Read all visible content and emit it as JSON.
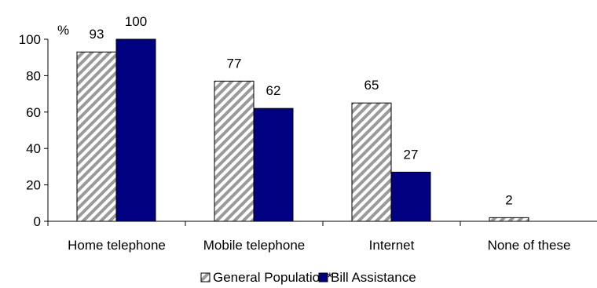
{
  "chart_data": {
    "type": "bar",
    "categories": [
      "Home telephone",
      "Mobile telephone",
      "Internet",
      "None of these"
    ],
    "series": [
      {
        "name": "General Population*",
        "values": [
          93,
          77,
          65,
          2
        ],
        "pattern": "diagonal-hatch",
        "color": "#888888"
      },
      {
        "name": "Bill Assistance",
        "values": [
          100,
          62,
          27,
          null
        ],
        "color": "#000080"
      }
    ],
    "data_labels": [
      {
        "category": "Home telephone",
        "general": "93",
        "bill": "100"
      },
      {
        "category": "Mobile telephone",
        "general": "77",
        "bill": "62"
      },
      {
        "category": "Internet",
        "general": "65",
        "bill": "27"
      },
      {
        "category": "None of these",
        "general": "2",
        "bill": ""
      }
    ],
    "yticks": [
      0,
      20,
      40,
      60,
      80,
      100
    ],
    "ylim": [
      0,
      100
    ],
    "yunit": "%",
    "grid": false,
    "legend_position": "bottom"
  }
}
